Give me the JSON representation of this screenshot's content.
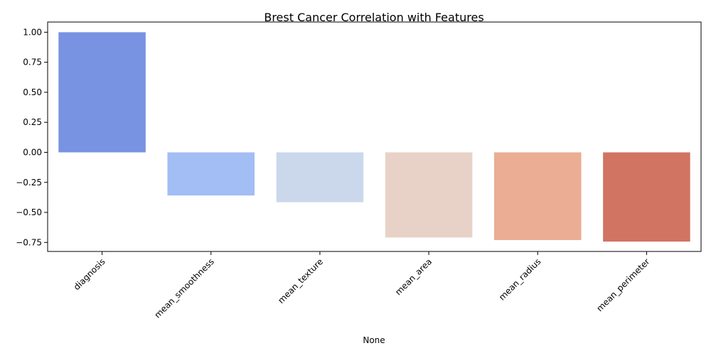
{
  "chart_data": {
    "type": "bar",
    "title": "Brest Cancer Correlation with Features",
    "xlabel": "None",
    "ylabel": "",
    "categories": [
      "diagnosis",
      "mean_smoothness",
      "mean_texture",
      "mean_area",
      "mean_radius",
      "mean_perimeter"
    ],
    "values": [
      1.0,
      -0.359,
      -0.415,
      -0.709,
      -0.73,
      -0.743
    ],
    "colors": [
      "#7793e1",
      "#a3bdf5",
      "#cbd8ec",
      "#e8d2c7",
      "#ebad93",
      "#d17462"
    ],
    "ylim": [
      -0.825,
      1.085
    ],
    "yticks": [
      -0.75,
      -0.5,
      -0.25,
      0.0,
      0.25,
      0.5,
      0.75,
      1.0
    ],
    "ytick_labels": [
      "−0.75",
      "−0.50",
      "−0.25",
      "0.00",
      "0.25",
      "0.50",
      "0.75",
      "1.00"
    ],
    "grid": false,
    "legend": "none",
    "xtick_rotation_deg": 45
  }
}
